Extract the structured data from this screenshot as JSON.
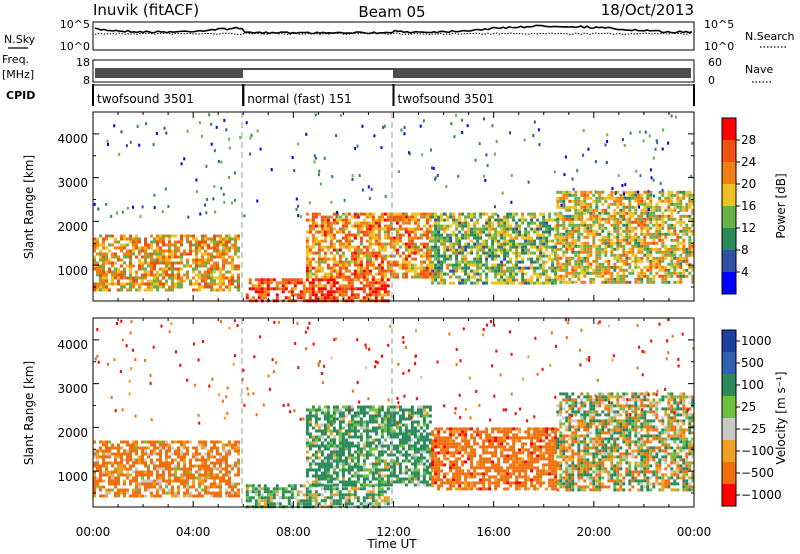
{
  "header": {
    "station": "Inuvik (fitACF)",
    "beam": "Beam 05",
    "date": "18/Oct/2013"
  },
  "nsky_panel": {
    "left_label": "N.Sky",
    "right_label": "N.Search",
    "left_ticks": [
      "10^5",
      "10^0"
    ],
    "right_ticks": [
      "10^5",
      "10^0"
    ]
  },
  "freq_panel": {
    "left_label_1": "Freq.",
    "left_label_2": "[MHz]",
    "right_label": "Nave",
    "left_ticks": [
      "18",
      "8"
    ],
    "right_ticks": [
      "60",
      "0"
    ]
  },
  "cpid_panel": {
    "label": "CPID",
    "segments": [
      {
        "label": "twofsound 3501",
        "start_hour": 0,
        "end_hour": 6
      },
      {
        "label": "normal (fast) 151",
        "start_hour": 6,
        "end_hour": 12
      },
      {
        "label": "twofsound 3501",
        "start_hour": 12,
        "end_hour": 24
      }
    ]
  },
  "x_axis": {
    "label": "Time UT",
    "ticks": [
      "00:00",
      "04:00",
      "08:00",
      "12:00",
      "16:00",
      "20:00",
      "00:00"
    ]
  },
  "power_panel": {
    "ylabel": "Slant Range [km]",
    "yticks": [
      "1000",
      "2000",
      "3000",
      "4000"
    ],
    "colorbar_label": "Power [dB]",
    "colorbar_ticks": [
      "4",
      "8",
      "12",
      "16",
      "20",
      "24",
      "28"
    ]
  },
  "velocity_panel": {
    "ylabel": "Slant Range [km]",
    "yticks": [
      "1000",
      "2000",
      "3000",
      "4000"
    ],
    "colorbar_label": "Velocity [m s⁻¹]",
    "colorbar_ticks": [
      "1000",
      "500",
      "100",
      "25",
      "−25",
      "−100",
      "−500",
      "−1000"
    ]
  },
  "colors": {
    "power_scale": [
      "#0000ff",
      "#3050a8",
      "#2a8a5a",
      "#6ab04a",
      "#f0c020",
      "#f08010",
      "#f05010",
      "#ff0000"
    ],
    "velocity_scale": [
      "#2040a0",
      "#3060b0",
      "#2a8a5a",
      "#70c040",
      "#c8c8c8",
      "#f0a020",
      "#f07010",
      "#ff0000"
    ]
  },
  "chart_data": [
    {
      "type": "heatmap",
      "title": "Power",
      "xlabel": "Time UT",
      "ylabel": "Slant Range [km]",
      "xlim": [
        0,
        24
      ],
      "ylim": [
        180,
        4500
      ],
      "colorbar": {
        "label": "Power [dB]",
        "range": [
          0,
          32
        ]
      },
      "regions": [
        {
          "start_hour": 0.0,
          "end_hour": 5.8,
          "range_low_km": 400,
          "range_high_km": 1700,
          "value": 20
        },
        {
          "start_hour": 6.1,
          "end_hour": 11.8,
          "range_low_km": 200,
          "range_high_km": 700,
          "value": 26
        },
        {
          "start_hour": 8.5,
          "end_hour": 13.5,
          "range_low_km": 700,
          "range_high_km": 2200,
          "value": 22
        },
        {
          "start_hour": 13.5,
          "end_hour": 18.5,
          "range_low_km": 600,
          "range_high_km": 2200,
          "value": 14
        },
        {
          "start_hour": 18.5,
          "end_hour": 24.0,
          "range_low_km": 600,
          "range_high_km": 2700,
          "value": 18
        }
      ]
    },
    {
      "type": "heatmap",
      "title": "Velocity",
      "xlabel": "Time UT",
      "ylabel": "Slant Range [km]",
      "xlim": [
        0,
        24
      ],
      "ylim": [
        180,
        4500
      ],
      "colorbar": {
        "label": "Velocity [m s⁻¹]",
        "range": [
          -1000,
          1000
        ]
      },
      "regions": [
        {
          "start_hour": 0.0,
          "end_hour": 5.8,
          "range_low_km": 400,
          "range_high_km": 1700,
          "value": -200
        },
        {
          "start_hour": 6.1,
          "end_hour": 11.8,
          "range_low_km": 200,
          "range_high_km": 700,
          "value": 150
        },
        {
          "start_hour": 8.5,
          "end_hour": 13.5,
          "range_low_km": 700,
          "range_high_km": 2500,
          "value": 200
        },
        {
          "start_hour": 13.5,
          "end_hour": 18.5,
          "range_low_km": 600,
          "range_high_km": 2000,
          "value": -300
        },
        {
          "start_hour": 18.5,
          "end_hour": 24.0,
          "range_low_km": 600,
          "range_high_km": 2800,
          "value": 0
        }
      ]
    }
  ]
}
